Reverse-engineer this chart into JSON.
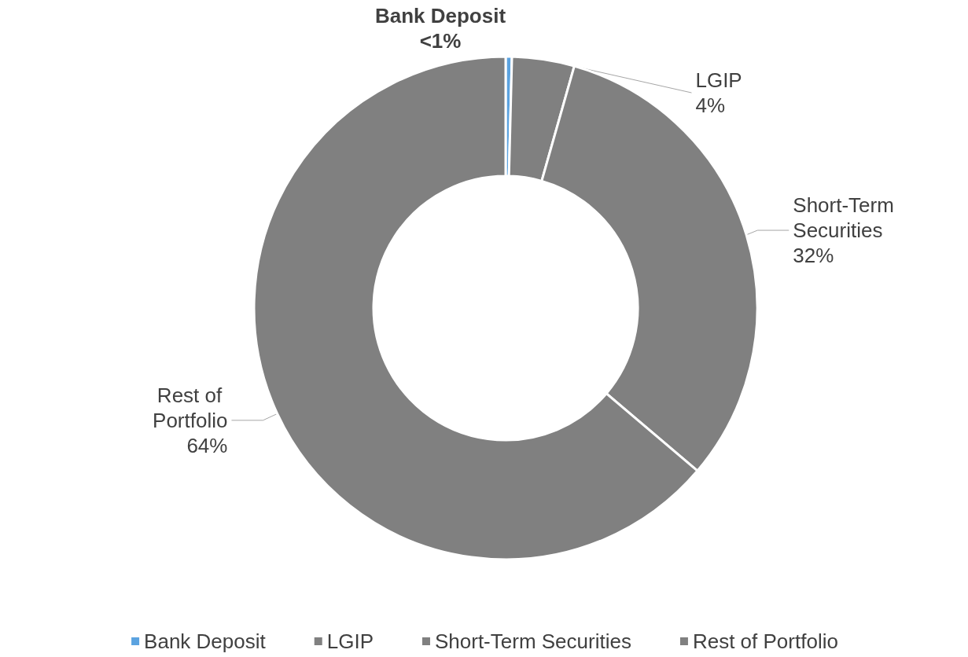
{
  "chart_data": {
    "type": "donut",
    "categories": [
      "Bank Deposit",
      "LGIP",
      "Short-Term Securities",
      "Rest of Portfolio"
    ],
    "values": [
      0.4,
      4,
      31.8,
      63.8
    ],
    "value_labels": [
      "<1%",
      "4%",
      "32%",
      "64%"
    ],
    "colors": [
      "#5ba3e0",
      "#808080",
      "#808080",
      "#808080"
    ],
    "legend": "bottom"
  }
}
